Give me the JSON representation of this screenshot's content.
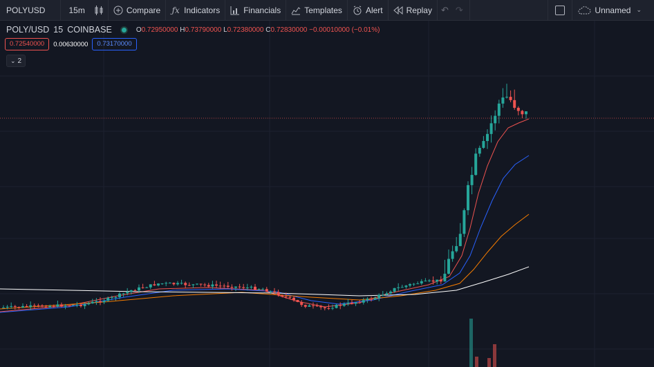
{
  "toolbar": {
    "symbol": "POLYUSD",
    "interval": "15m",
    "compare": "Compare",
    "indicators": "Indicators",
    "financials": "Financials",
    "templates": "Templates",
    "alert": "Alert",
    "replay": "Replay",
    "layout_name": "Unnamed"
  },
  "legend": {
    "title": "POLY/USD",
    "interval": "15",
    "exchange": "COINBASE",
    "o_label": "O",
    "o_value": "0.72950000",
    "h_label": "H",
    "h_value": "0.73790000",
    "l_label": "L",
    "l_value": "0.72380000",
    "c_label": "C",
    "c_value": "0.72830000",
    "change": "−0.00010000 (−0.01%)"
  },
  "inputs": {
    "value1": "0.72540000",
    "value2": "0.00630000",
    "value3": "0.73170000"
  },
  "collapse_count": "2",
  "colors": {
    "background": "#131722",
    "up": "#26a69a",
    "down": "#ef5350",
    "ma_fast": "#ef5350",
    "ma_mid": "#2962ff",
    "ma_slow": "#f57c00",
    "ma_long": "#ffffff"
  },
  "icons": [
    "interval-candles-icon",
    "compare-plus-icon",
    "indicators-fx-icon",
    "financials-icon",
    "templates-icon",
    "alert-clock-icon",
    "replay-icon",
    "undo-icon",
    "redo-icon",
    "fullscreen-icon",
    "cloud-icon"
  ]
}
